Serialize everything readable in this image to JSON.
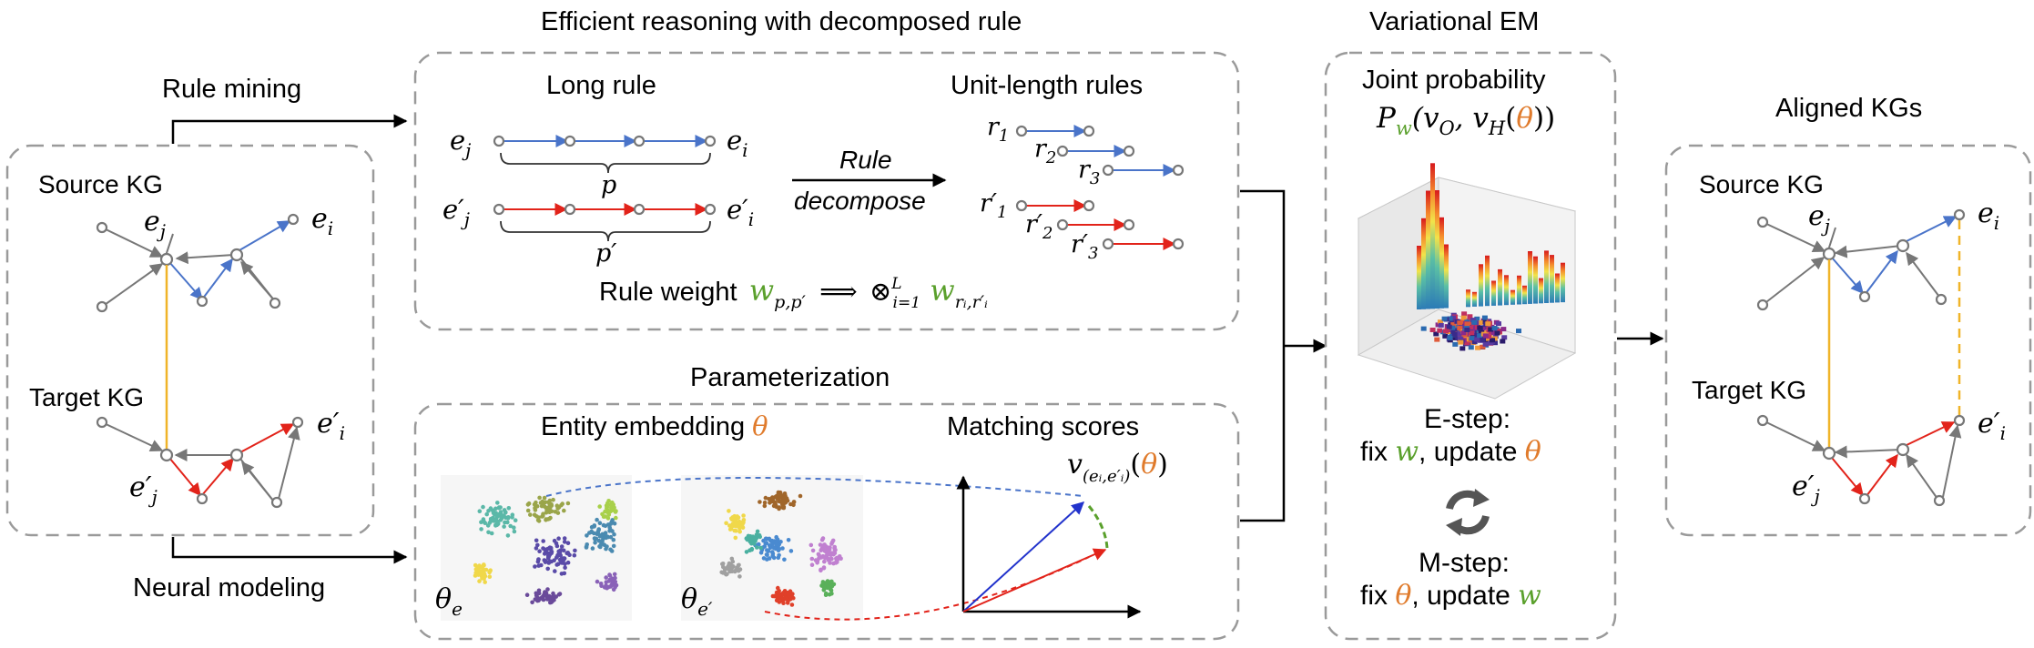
{
  "colors": {
    "blue": "#4a74c9",
    "red": "#e2231a",
    "gray": "#777777",
    "align": "#f0b429",
    "green": "#5aa02c",
    "orange": "#e07b2c",
    "panel_border": "#9a9a9a"
  },
  "left": {
    "source_kg": "Source KG",
    "target_kg": "Target KG",
    "ej_base": "e",
    "ej_sub": "j",
    "ei_base": "e",
    "ei_sub": "i",
    "epj_base": "e′",
    "epj_sub": "j",
    "epi_base": "e′",
    "epi_sub": "i"
  },
  "arrows": {
    "rule_mining": "Rule mining",
    "neural_modeling": "Neural modeling"
  },
  "rule_panel": {
    "title": "Efficient reasoning with decomposed rule",
    "long_rule": "Long rule",
    "unit_rules": "Unit-length rules",
    "ej_base": "e",
    "ej_sub": "j",
    "ei_base": "e",
    "ei_sub": "i",
    "epj_base": "e′",
    "epj_sub": "j",
    "epi_base": "e′",
    "epi_sub": "i",
    "p": "p",
    "p_prime": "p′",
    "rule_word": "Rule",
    "decompose_word": "decompose",
    "r1_base": "r",
    "r1_sub": "1",
    "r2_base": "r",
    "r2_sub": "2",
    "r3_base": "r",
    "r3_sub": "3",
    "rp1_base": "r′",
    "rp1_sub": "1",
    "rp2_base": "r′",
    "rp2_sub": "2",
    "rp3_base": "r′",
    "rp3_sub": "3",
    "weight_label": "Rule weight",
    "w_base": "w",
    "w_sub": "p,p′",
    "implies": "⟹",
    "otimes": "⊗",
    "prod_sub": "i=1",
    "prod_sup": "L",
    "w2_base": "w",
    "w2_sub": "rᵢ,r′ᵢ"
  },
  "param_panel": {
    "title": "Parameterization",
    "entity_embedding": "Entity embedding",
    "theta": "θ",
    "matching_scores": "Matching scores",
    "theta_e_base": "θ",
    "theta_e_sub": "e",
    "theta_ep_base": "θ",
    "theta_ep_sub": "e′",
    "v_label_base": "v",
    "v_label_sub": "(eᵢ,e′ᵢ)",
    "v_label_paren_open": "(",
    "v_label_theta": "θ",
    "v_label_paren_close": ")"
  },
  "em_panel": {
    "title": "Variational EM",
    "joint": "Joint probability",
    "P_base": "P",
    "P_sub": "w",
    "P_args_open": "(v",
    "P_vO_sub": "O",
    "P_comma": ", v",
    "P_vH_sub": "H",
    "P_theta_open": "(",
    "P_theta": "θ",
    "P_close": "))",
    "estep": "E-step:",
    "estep_fix": "fix ",
    "estep_w": "w",
    "estep_update": ", update ",
    "estep_theta": "θ",
    "mstep": "M-step:",
    "mstep_fix": "fix ",
    "mstep_theta": "θ",
    "mstep_update": ", update ",
    "mstep_w": "w"
  },
  "right": {
    "title": "Aligned KGs",
    "source_kg": "Source KG",
    "target_kg": "Target KG",
    "ej_base": "e",
    "ej_sub": "j",
    "ei_base": "e",
    "ei_sub": "i",
    "epj_base": "e′",
    "epj_sub": "j",
    "epi_base": "e′",
    "epi_sub": "i"
  }
}
